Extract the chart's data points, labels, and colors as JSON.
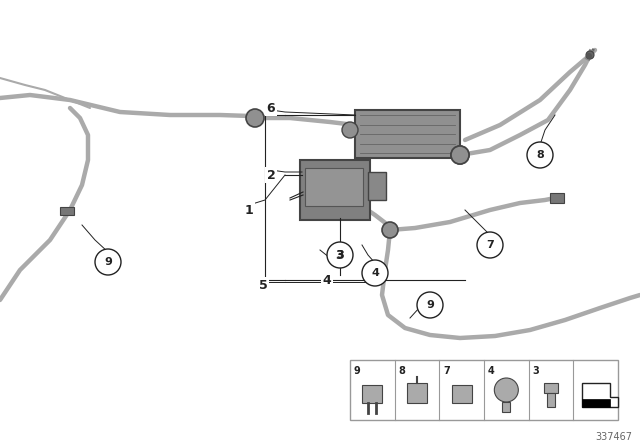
{
  "bg_color": "#ffffff",
  "diagram_number": "337467",
  "line_color": "#aaaaaa",
  "dark": "#222222",
  "component_color": "#909090",
  "component_edge": "#444444",
  "grommet_color": "#888888"
}
